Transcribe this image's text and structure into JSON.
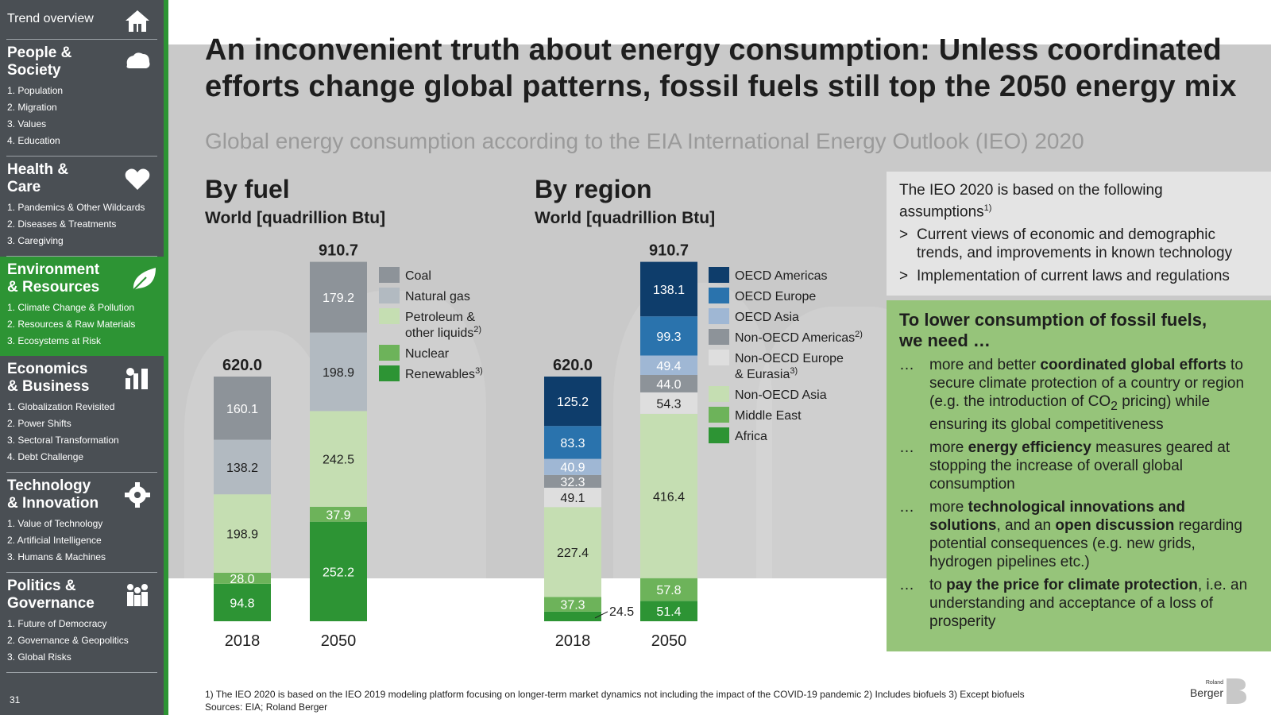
{
  "sidebar": {
    "top_label": "Trend overview",
    "page_number": "31",
    "sections": [
      {
        "title_line1": "People &",
        "title_line2": "Society",
        "icon": "people-icon",
        "items": [
          "1. Population",
          "2. Migration",
          "3. Values",
          "4. Education"
        ]
      },
      {
        "title_line1": "Health &",
        "title_line2": "Care",
        "icon": "heart-icon",
        "items": [
          "1. Pandemics & Other Wildcards",
          "2. Diseases & Treatments",
          "3. Caregiving"
        ]
      },
      {
        "title_line1": "Environment",
        "title_line2": "& Resources",
        "icon": "leaf-icon",
        "items": [
          "1. Climate Change & Pollution",
          "2. Resources & Raw Materials",
          "3. Ecosystems at Risk"
        ],
        "active": true,
        "current_item": 1
      },
      {
        "title_line1": "Economics",
        "title_line2": "& Business",
        "icon": "business-icon",
        "items": [
          "1. Globalization Revisited",
          "2. Power Shifts",
          "3. Sectoral Transformation",
          "4. Debt Challenge"
        ]
      },
      {
        "title_line1": "Technology",
        "title_line2": "& Innovation",
        "icon": "gear-icon",
        "items": [
          "1. Value of Technology",
          "2. Artificial Intelligence",
          "3. Humans & Machines"
        ]
      },
      {
        "title_line1": "Politics &",
        "title_line2": "Governance",
        "icon": "governance-icon",
        "items": [
          "1. Future of Democracy",
          "2. Governance & Geopolitics",
          "3. Global Risks"
        ]
      }
    ]
  },
  "title": "An inconvenient truth about energy consumption: Unless coordinated efforts change global patterns, fossil fuels still top the 2050 energy mix",
  "subtitle": "Global energy consumption according to the EIA International Energy Outlook (IEO) 2020",
  "assumptions": {
    "intro": "The IEO 2020 is based on the following assumptions",
    "intro_sup": "1)",
    "arrow": ">",
    "items": [
      "Current views of economic and demographic trends, and improvements in known technology",
      "Implementation of current laws and regulations"
    ]
  },
  "needs": {
    "heading": "To lower consumption of fossil fuels, we need …",
    "dots": "…",
    "items": [
      {
        "pre": "more and better ",
        "bold": "coordinated global efforts",
        "post": " to secure climate protection of a country or region (e.g. the introduction of CO",
        "sub": "2",
        "post2": " pricing) while ensuring its global competitiveness"
      },
      {
        "pre": "more ",
        "bold": "energy efficiency",
        "post": " measures geared at stopping the increase of overall global consumption"
      },
      {
        "pre": "more ",
        "bold": "technological innovations and solutions",
        "post": ", and an ",
        "bold2": "open discussion",
        "post2": " regarding potential consequences (e.g. new grids, hydrogen pipelines etc.)"
      },
      {
        "pre": "to ",
        "bold": "pay the price for climate protection",
        "post": ", i.e. an understanding and acceptance of a loss of prosperity"
      }
    ]
  },
  "footer": {
    "notes": "1) The IEO 2020 is based on the IEO 2019 modeling platform focusing on longer-term market dynamics not including the impact of the COVID-19 pandemic  2) Includes biofuels  3) Except biofuels",
    "sources": "Sources: EIA; Roland Berger"
  },
  "brand": {
    "line1": "Roland",
    "line2": "Berger"
  },
  "chart_data": [
    {
      "type": "bar",
      "stacked": true,
      "title": "By fuel",
      "unit_label": "World [quadrillion Btu]",
      "categories": [
        "2018",
        "2050"
      ],
      "totals": [
        "620.0",
        "910.7"
      ],
      "series": [
        {
          "name": "Renewables",
          "name_sup": "3)",
          "values": [
            94.8,
            252.2
          ],
          "labels": [
            "94.8",
            "252.2"
          ],
          "color": "#2d9434"
        },
        {
          "name": "Nuclear",
          "values": [
            28.0,
            37.9
          ],
          "labels": [
            "28.0",
            "37.9"
          ],
          "color": "#6db35a"
        },
        {
          "name": "Petroleum & other liquids",
          "name_line1": "Petroleum &",
          "name_line2": "other liquids",
          "name_sup": "2)",
          "values": [
            198.9,
            242.5
          ],
          "labels": [
            "198.9",
            "242.5"
          ],
          "color": "#c5deb2"
        },
        {
          "name": "Natural gas",
          "values": [
            138.2,
            198.9
          ],
          "labels": [
            "138.2",
            "198.9"
          ],
          "color": "#b2bac1"
        },
        {
          "name": "Coal",
          "values": [
            160.1,
            179.2
          ],
          "labels": [
            "160.1",
            "179.2"
          ],
          "color": "#8d9399"
        }
      ]
    },
    {
      "type": "bar",
      "stacked": true,
      "title": "By region",
      "unit_label": "World [quadrillion Btu]",
      "categories": [
        "2018",
        "2050"
      ],
      "totals": [
        "620.0",
        "910.7"
      ],
      "series": [
        {
          "name": "Africa",
          "values": [
            24.5,
            51.4
          ],
          "labels": [
            "24.5",
            "51.4"
          ],
          "color": "#2d9434"
        },
        {
          "name": "Middle East",
          "values": [
            37.3,
            57.8
          ],
          "labels": [
            "37.3",
            "57.8"
          ],
          "color": "#6db35a"
        },
        {
          "name": "Non-OECD Asia",
          "values": [
            227.4,
            416.4
          ],
          "labels": [
            "227.4",
            "416.4"
          ],
          "color": "#c5deb2"
        },
        {
          "name": "Non-OECD Europe & Eurasia",
          "name_line1": "Non-OECD Europe",
          "name_line2": "& Eurasia",
          "name_sup": "3)",
          "values": [
            49.1,
            54.3
          ],
          "labels": [
            "49.1",
            "54.3"
          ],
          "color": "#dedede"
        },
        {
          "name": "Non-OECD Americas",
          "name_sup": "2)",
          "values": [
            32.3,
            44.0
          ],
          "labels": [
            "32.3",
            "44.0"
          ],
          "color": "#8d9399"
        },
        {
          "name": "OECD Asia",
          "values": [
            40.9,
            49.4
          ],
          "labels": [
            "40.9",
            "49.4"
          ],
          "color": "#9fb7d4"
        },
        {
          "name": "OECD Europe",
          "values": [
            83.3,
            99.3
          ],
          "labels": [
            "83.3",
            "99.3"
          ],
          "color": "#2a73ad"
        },
        {
          "name": "OECD Americas",
          "values": [
            125.2,
            138.1
          ],
          "labels": [
            "125.2",
            "138.1"
          ],
          "color": "#0e3d6b"
        }
      ]
    }
  ]
}
